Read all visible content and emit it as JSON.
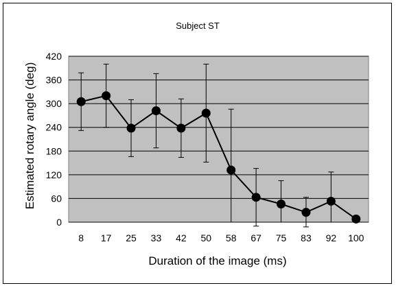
{
  "chart_data": {
    "type": "line",
    "title": "Subject ST",
    "xlabel": "Duration of the image (ms)",
    "ylabel": "Estimated rotary angle (deg)",
    "categories": [
      "8",
      "17",
      "25",
      "33",
      "42",
      "50",
      "58",
      "67",
      "75",
      "83",
      "92",
      "100"
    ],
    "series": [
      {
        "values": [
          305,
          320,
          238,
          282,
          238,
          276,
          132,
          63,
          46,
          25,
          53,
          8
        ],
        "err_upper": [
          378,
          400,
          310,
          376,
          312,
          400,
          286,
          136,
          105,
          63,
          127,
          8
        ],
        "err_lower": [
          232,
          240,
          166,
          188,
          164,
          152,
          0,
          -10,
          0,
          -12,
          0,
          8
        ]
      }
    ],
    "ylim": [
      0,
      420
    ],
    "yticks": [
      0,
      60,
      120,
      180,
      240,
      300,
      360,
      420
    ],
    "grid": true,
    "colors": {
      "plot_background": "#c0c0c0",
      "line": "#000000",
      "marker": "#000000"
    }
  }
}
